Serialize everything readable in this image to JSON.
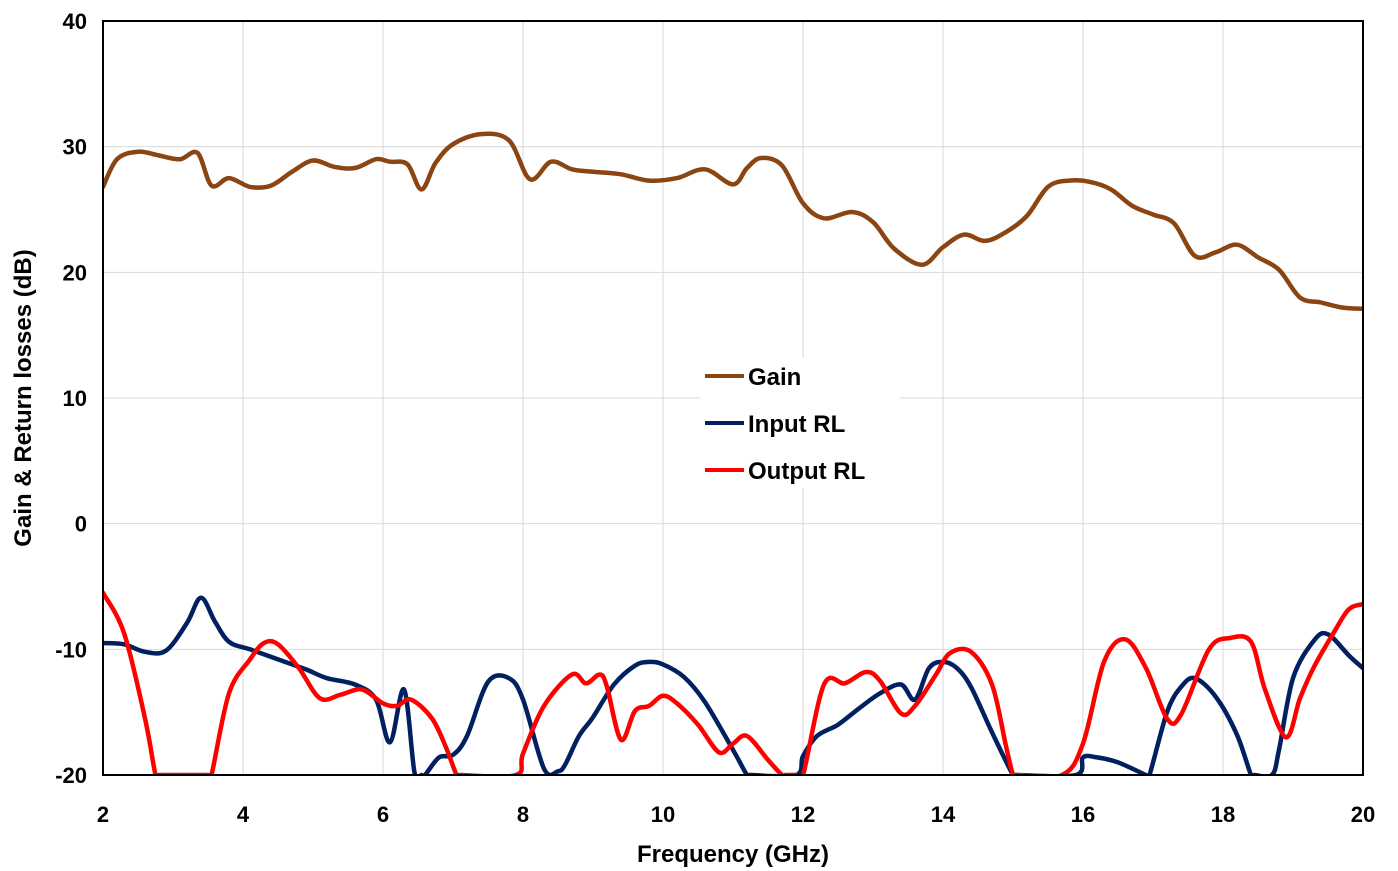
{
  "chart_data": {
    "type": "line",
    "xlabel": "Frequency (GHz)",
    "ylabel": "Gain & Return losses (dB)",
    "xlim": [
      2,
      20
    ],
    "ylim": [
      -20,
      40
    ],
    "x_ticks": [
      "2",
      "4",
      "6",
      "8",
      "10",
      "12",
      "14",
      "16",
      "18",
      "20"
    ],
    "y_ticks": [
      "-20",
      "-10",
      "0",
      "10",
      "20",
      "30",
      "40"
    ],
    "grid": true,
    "legend_placement": "center",
    "series": [
      {
        "name": "Gain",
        "color": "#8B4513",
        "x": [
          2.0,
          2.2,
          2.5,
          2.8,
          3.1,
          3.35,
          3.55,
          3.8,
          4.1,
          4.4,
          4.7,
          5.0,
          5.3,
          5.6,
          5.9,
          6.1,
          6.35,
          6.55,
          6.75,
          7.0,
          7.4,
          7.8,
          8.1,
          8.4,
          8.7,
          9.0,
          9.4,
          9.8,
          10.2,
          10.6,
          11.0,
          11.2,
          11.4,
          11.7,
          12.0,
          12.3,
          12.7,
          13.0,
          13.3,
          13.7,
          14.0,
          14.3,
          14.6,
          14.9,
          15.2,
          15.5,
          15.8,
          16.1,
          16.4,
          16.7,
          17.0,
          17.3,
          17.6,
          17.9,
          18.2,
          18.5,
          18.8,
          19.1,
          19.4,
          19.7,
          20.0
        ],
        "values": [
          26.8,
          29.0,
          29.6,
          29.3,
          29.0,
          29.5,
          26.9,
          27.5,
          26.8,
          26.9,
          28.0,
          28.9,
          28.4,
          28.3,
          29.0,
          28.8,
          28.6,
          26.6,
          28.7,
          30.2,
          31.0,
          30.5,
          27.4,
          28.8,
          28.2,
          28.0,
          27.8,
          27.3,
          27.5,
          28.2,
          27.0,
          28.3,
          29.1,
          28.5,
          25.5,
          24.3,
          24.8,
          24.0,
          21.9,
          20.6,
          22.0,
          23.0,
          22.5,
          23.2,
          24.5,
          26.8,
          27.3,
          27.2,
          26.6,
          25.3,
          24.6,
          23.9,
          21.3,
          21.6,
          22.2,
          21.2,
          20.2,
          18.0,
          17.6,
          17.2,
          17.1
        ]
      },
      {
        "name": "Input RL",
        "color": "#002060",
        "x": [
          2.0,
          2.3,
          2.6,
          2.9,
          3.2,
          3.4,
          3.6,
          3.8,
          4.1,
          4.5,
          4.9,
          5.2,
          5.6,
          5.9,
          6.1,
          6.3,
          6.45,
          6.55,
          6.6,
          6.8,
          7.0,
          7.2,
          7.5,
          7.8,
          8.0,
          8.3,
          8.5,
          8.6,
          8.8,
          9.0,
          9.3,
          9.6,
          9.8,
          10.0,
          10.3,
          10.6,
          11.0,
          11.2,
          11.25,
          11.9,
          12.0,
          12.2,
          12.5,
          12.8,
          13.1,
          13.4,
          13.6,
          13.8,
          14.0,
          14.2,
          14.4,
          14.7,
          15.0,
          15.05,
          15.9,
          16.0,
          16.2,
          16.5,
          16.9,
          16.95,
          17.2,
          17.4,
          17.6,
          17.9,
          18.2,
          18.4,
          18.45,
          18.7,
          18.8,
          19.0,
          19.3,
          19.5,
          19.8,
          20.0
        ],
        "values": [
          -9.5,
          -9.6,
          -10.2,
          -10.1,
          -7.9,
          -5.9,
          -7.8,
          -9.4,
          -10.0,
          -10.8,
          -11.6,
          -12.3,
          -12.8,
          -14.0,
          -17.4,
          -13.2,
          -19.8,
          -20.0,
          -20.0,
          -18.6,
          -18.4,
          -16.9,
          -12.6,
          -12.3,
          -14.0,
          -19.5,
          -19.7,
          -19.2,
          -16.9,
          -15.4,
          -12.8,
          -11.3,
          -11.0,
          -11.2,
          -12.2,
          -14.2,
          -18.0,
          -20.0,
          -20.0,
          -20.0,
          -18.5,
          -16.9,
          -16.0,
          -14.7,
          -13.5,
          -12.8,
          -14.0,
          -11.5,
          -11.0,
          -11.5,
          -13.0,
          -16.6,
          -20.0,
          -20.0,
          -20.0,
          -18.6,
          -18.6,
          -19.0,
          -20.0,
          -20.0,
          -15.0,
          -13.0,
          -12.3,
          -13.8,
          -16.8,
          -20.0,
          -20.0,
          -20.0,
          -18.0,
          -12.3,
          -9.3,
          -8.8,
          -10.5,
          -11.5
        ]
      },
      {
        "name": "Output RL",
        "color": "#FF0000",
        "x": [
          2.0,
          2.3,
          2.6,
          2.75,
          2.8,
          3.5,
          3.55,
          3.8,
          4.1,
          4.3,
          4.5,
          4.8,
          5.1,
          5.4,
          5.7,
          6.0,
          6.2,
          6.4,
          6.7,
          6.9,
          7.05,
          7.1,
          7.9,
          8.0,
          8.3,
          8.7,
          8.9,
          9.1,
          9.2,
          9.4,
          9.6,
          9.8,
          10.0,
          10.2,
          10.5,
          10.8,
          11.0,
          11.2,
          11.5,
          11.7,
          11.75,
          11.9,
          12.0,
          12.3,
          12.6,
          12.9,
          13.1,
          13.4,
          13.6,
          13.9,
          14.1,
          14.4,
          14.7,
          14.9,
          15.0,
          15.05,
          15.7,
          16.0,
          16.3,
          16.6,
          16.9,
          17.2,
          17.4,
          17.8,
          18.1,
          18.4,
          18.6,
          18.9,
          19.1,
          19.3,
          19.6,
          19.8,
          20.0
        ],
        "values": [
          -5.5,
          -8.7,
          -15.5,
          -20.0,
          -20.0,
          -20.0,
          -20.0,
          -13.5,
          -10.8,
          -9.5,
          -9.6,
          -11.5,
          -13.9,
          -13.6,
          -13.2,
          -14.3,
          -14.5,
          -14.0,
          -15.5,
          -17.8,
          -20.0,
          -20.0,
          -20.0,
          -18.3,
          -14.5,
          -12.0,
          -12.7,
          -12.0,
          -13.0,
          -17.2,
          -14.9,
          -14.5,
          -13.7,
          -14.3,
          -16.0,
          -18.2,
          -17.5,
          -16.9,
          -18.8,
          -20.0,
          -20.0,
          -20.0,
          -20.0,
          -12.8,
          -12.7,
          -11.8,
          -12.5,
          -15.1,
          -14.5,
          -12.0,
          -10.3,
          -10.2,
          -12.8,
          -17.7,
          -20.0,
          -20.0,
          -20.0,
          -17.5,
          -11.0,
          -9.2,
          -11.5,
          -15.5,
          -15.2,
          -10.0,
          -9.1,
          -9.4,
          -13.2,
          -17.0,
          -13.9,
          -11.4,
          -8.5,
          -6.8,
          -6.4
        ]
      }
    ]
  }
}
